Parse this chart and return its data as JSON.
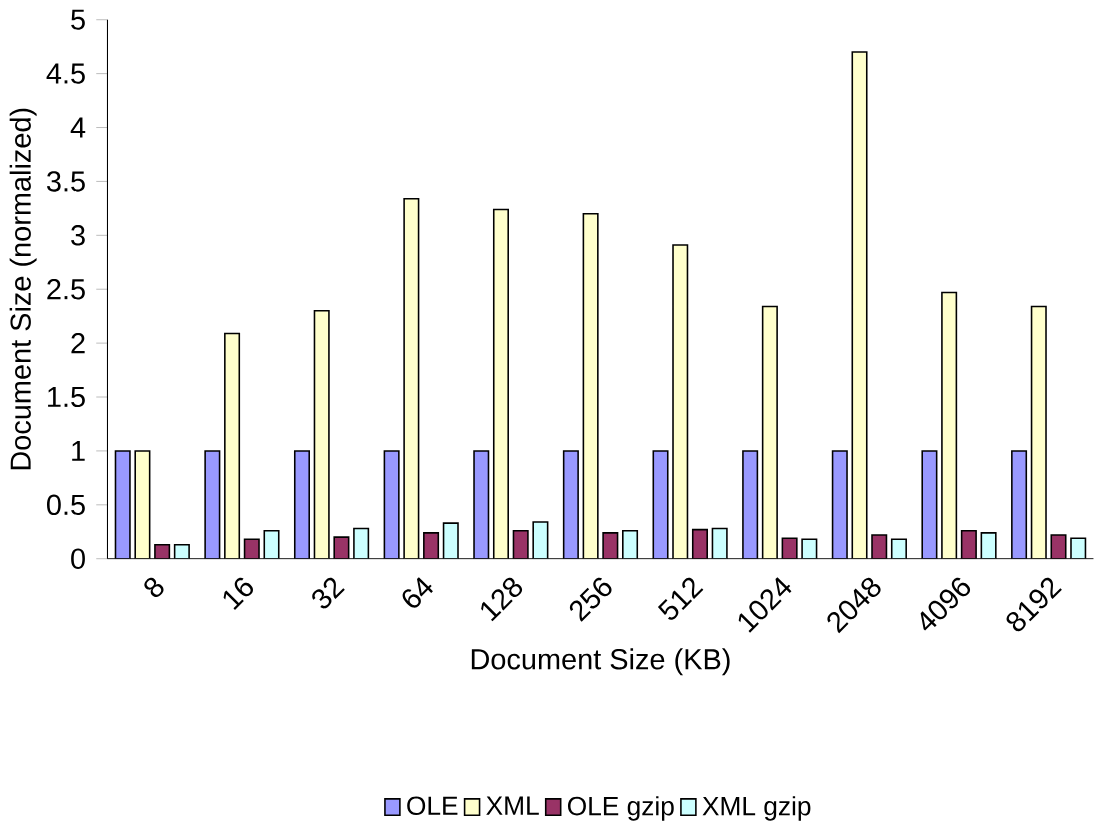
{
  "chart_data": {
    "type": "bar",
    "xlabel": "Document Size (KB)",
    "ylabel": "Document Size (normalized)",
    "categories": [
      "8",
      "16",
      "32",
      "64",
      "128",
      "256",
      "512",
      "1024",
      "2048",
      "4096",
      "8192"
    ],
    "series": [
      {
        "name": "OLE",
        "color": "#9999ff",
        "values": [
          1,
          1,
          1,
          1,
          1,
          1,
          1,
          1,
          1,
          1,
          1
        ]
      },
      {
        "name": "XML",
        "color": "#ffffcc",
        "values": [
          1,
          2.09,
          2.3,
          3.34,
          3.24,
          3.2,
          2.91,
          2.34,
          4.7,
          2.47,
          2.34
        ]
      },
      {
        "name": "OLE gzip",
        "color": "#993366",
        "values": [
          0.13,
          0.18,
          0.2,
          0.24,
          0.26,
          0.24,
          0.27,
          0.19,
          0.22,
          0.26,
          0.22
        ]
      },
      {
        "name": "XML gzip",
        "color": "#ccffff",
        "values": [
          0.13,
          0.26,
          0.28,
          0.33,
          0.34,
          0.26,
          0.28,
          0.18,
          0.18,
          0.24,
          0.19
        ]
      }
    ],
    "ylim": [
      0,
      5
    ],
    "yticks": [
      0,
      0.5,
      1,
      1.5,
      2,
      2.5,
      3,
      3.5,
      4,
      4.5,
      5
    ],
    "grid": false,
    "legend": "bottom"
  }
}
